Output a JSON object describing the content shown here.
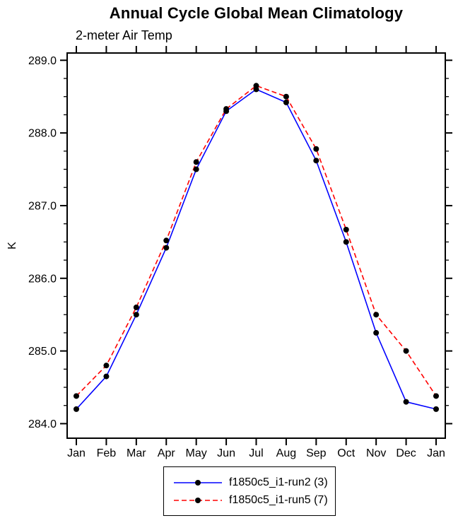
{
  "chart_data": {
    "type": "line",
    "title": "Annual Cycle Global Mean Climatology",
    "subtitle": "2-meter Air Temp",
    "ylabel": "K",
    "xlabel": "",
    "categories": [
      "Jan",
      "Feb",
      "Mar",
      "Apr",
      "May",
      "Jun",
      "Jul",
      "Aug",
      "Sep",
      "Oct",
      "Nov",
      "Dec",
      "Jan"
    ],
    "series": [
      {
        "name": "f1850c5_i1-run2 (3)",
        "color": "#0000ff",
        "line_style": "solid",
        "marker": "filled-circle",
        "marker_color": "#000000",
        "values": [
          284.2,
          284.65,
          285.5,
          286.42,
          287.5,
          288.3,
          288.6,
          288.42,
          287.62,
          286.5,
          285.25,
          284.3,
          284.2
        ]
      },
      {
        "name": "f1850c5_i1-run5 (7)",
        "color": "#ff0000",
        "line_style": "dashed",
        "marker": "filled-circle",
        "marker_color": "#000000",
        "values": [
          284.38,
          284.8,
          285.6,
          286.52,
          287.6,
          288.33,
          288.65,
          288.5,
          287.78,
          286.67,
          285.5,
          285.0,
          284.38
        ]
      }
    ],
    "ylim": [
      283.8,
      289.1
    ],
    "ytick_major": [
      284.0,
      285.0,
      286.0,
      287.0,
      288.0,
      289.0
    ],
    "ytick_labels": [
      "284.0",
      "285.0",
      "286.0",
      "287.0",
      "288.0",
      "289.0"
    ],
    "ytick_minor_step": 0.25,
    "grid": false,
    "legend_position": "bottom",
    "axis_color": "#000000",
    "background_color": "#ffffff"
  }
}
